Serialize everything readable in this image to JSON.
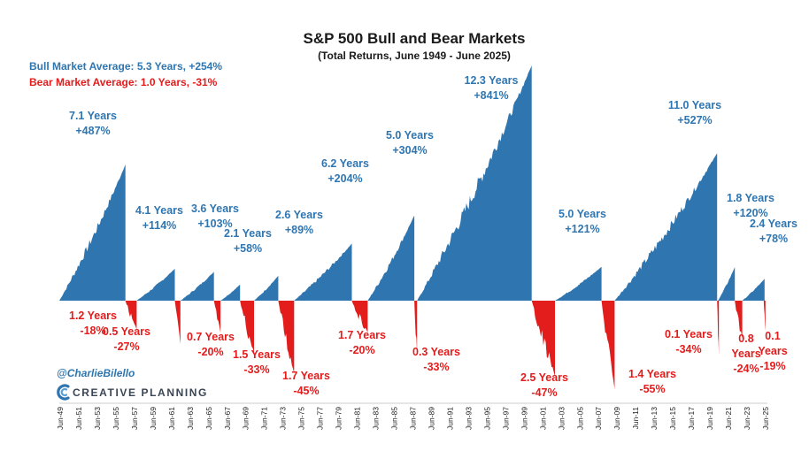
{
  "colors": {
    "bull": "#2f76b1",
    "bear": "#e31c1c",
    "text": "#1a1a1a",
    "brand": "#3a4656"
  },
  "credit": {
    "handle": "@CharlieBilello",
    "brand": "CREATIVE PLANNING",
    "brand_icon": "creative-planning-logo-icon"
  },
  "chart_data": {
    "type": "area",
    "title": "S&P 500 Bull and Bear Markets",
    "subtitle": "(Total Returns, June 1949 - June 2025)",
    "averages": {
      "bull": "Bull Market Average: 5.3 Years, +254%",
      "bear": "Bear Market Average: 1.0 Years, -31%"
    },
    "x_range": [
      1949.5,
      2025.5
    ],
    "y_range_bull_pct": [
      0,
      841
    ],
    "y_range_bear_pct": [
      -55,
      0
    ],
    "x_ticks": [
      "Jun-49",
      "Jun-51",
      "Jun-53",
      "Jun-55",
      "Jun-57",
      "Jun-59",
      "Jun-61",
      "Jun-63",
      "Jun-65",
      "Jun-67",
      "Jun-69",
      "Jun-71",
      "Jun-73",
      "Jun-75",
      "Jun-77",
      "Jun-79",
      "Jun-81",
      "Jun-83",
      "Jun-85",
      "Jun-87",
      "Jun-89",
      "Jun-91",
      "Jun-93",
      "Jun-95",
      "Jun-97",
      "Jun-99",
      "Jun-01",
      "Jun-03",
      "Jun-05",
      "Jun-07",
      "Jun-09",
      "Jun-11",
      "Jun-13",
      "Jun-15",
      "Jun-17",
      "Jun-19",
      "Jun-21",
      "Jun-23",
      "Jun-25"
    ],
    "bull_markets": [
      {
        "start": 1949.5,
        "end": 1956.6,
        "years_label": "7.1 Years",
        "return_label": "+487%",
        "return_pct": 487
      },
      {
        "start": 1957.8,
        "end": 1961.9,
        "years_label": "4.1 Years",
        "return_label": "+114%",
        "return_pct": 114
      },
      {
        "start": 1962.5,
        "end": 1966.1,
        "years_label": "3.6 Years",
        "return_label": "+103%",
        "return_pct": 103
      },
      {
        "start": 1966.8,
        "end": 1968.9,
        "years_label": "2.1 Years",
        "return_label": "+58%",
        "return_pct": 58
      },
      {
        "start": 1970.4,
        "end": 1973.0,
        "years_label": "2.6 Years",
        "return_label": "+89%",
        "return_pct": 89
      },
      {
        "start": 1974.7,
        "end": 1980.9,
        "years_label": "6.2 Years",
        "return_label": "+204%",
        "return_pct": 204
      },
      {
        "start": 1982.6,
        "end": 1987.6,
        "years_label": "5.0 Years",
        "return_label": "+304%",
        "return_pct": 304
      },
      {
        "start": 1987.9,
        "end": 2000.2,
        "years_label": "12.3 Years",
        "return_label": "+841%",
        "return_pct": 841
      },
      {
        "start": 2002.7,
        "end": 2007.7,
        "years_label": "5.0 Years",
        "return_label": "+121%",
        "return_pct": 121
      },
      {
        "start": 2009.1,
        "end": 2020.1,
        "years_label": "11.0 Years",
        "return_label": "+527%",
        "return_pct": 527
      },
      {
        "start": 2020.2,
        "end": 2022.0,
        "years_label": "1.8 Years",
        "return_label": "+120%",
        "return_pct": 120
      },
      {
        "start": 2022.8,
        "end": 2025.2,
        "years_label": "2.4 Years",
        "return_label": "+78%",
        "return_pct": 78
      }
    ],
    "bear_markets": [
      {
        "start": 1956.6,
        "end": 1957.8,
        "years_label": "1.2 Years",
        "return_label": "-18%",
        "return_pct": -18
      },
      {
        "start": 1961.9,
        "end": 1962.5,
        "years_label": "0.5 Years",
        "return_label": "-27%",
        "return_pct": -27
      },
      {
        "start": 1966.1,
        "end": 1966.8,
        "years_label": "0.7 Years",
        "return_label": "-20%",
        "return_pct": -20
      },
      {
        "start": 1968.9,
        "end": 1970.4,
        "years_label": "1.5 Years",
        "return_label": "-33%",
        "return_pct": -33
      },
      {
        "start": 1973.0,
        "end": 1974.7,
        "years_label": "1.7 Years",
        "return_label": "-45%",
        "return_pct": -45
      },
      {
        "start": 1980.9,
        "end": 1982.6,
        "years_label": "1.7 Years",
        "return_label": "-20%",
        "return_pct": -20
      },
      {
        "start": 1987.6,
        "end": 1987.9,
        "years_label": "0.3 Years",
        "return_label": "-33%",
        "return_pct": -33
      },
      {
        "start": 2000.2,
        "end": 2002.7,
        "years_label": "2.5 Years",
        "return_label": "-47%",
        "return_pct": -47
      },
      {
        "start": 2007.7,
        "end": 2009.1,
        "years_label": "1.4 Years",
        "return_label": "-55%",
        "return_pct": -55
      },
      {
        "start": 2020.1,
        "end": 2020.2,
        "years_label": "0.1 Years",
        "return_label": "-34%",
        "return_pct": -34
      },
      {
        "start": 2022.0,
        "end": 2022.8,
        "years_label": "0.8 Years",
        "return_label": "-24%",
        "return_pct": -24
      },
      {
        "start": 2025.1,
        "end": 2025.2,
        "years_label": "0.1 Years",
        "return_label": "-19%",
        "return_pct": -19
      }
    ]
  }
}
